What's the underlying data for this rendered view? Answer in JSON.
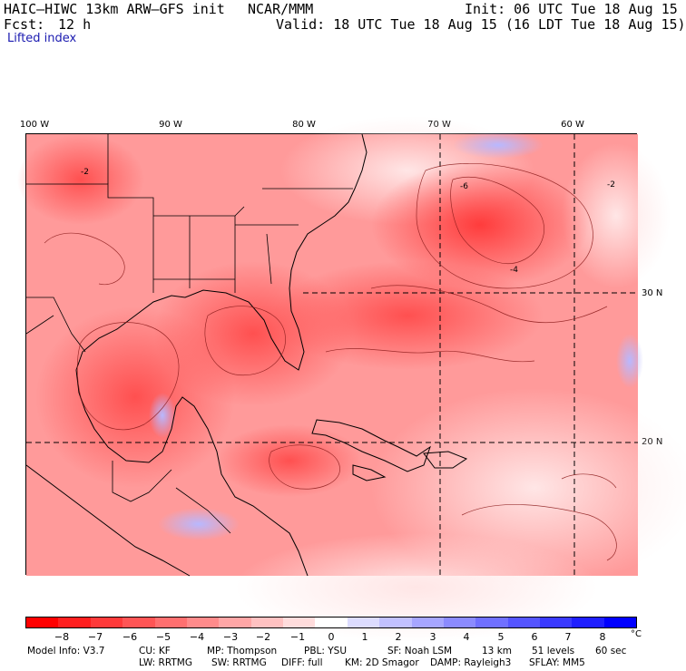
{
  "header": {
    "model": "HAIC–HIWC 13km ARW–GFS init",
    "center": "NCAR/MMM",
    "init": "Init: 06 UTC Tue 18 Aug 15",
    "fcst_label": "Fcst:",
    "fcst_value": "12 h",
    "valid": "Valid: 18 UTC Tue 18 Aug 15 (16 LDT Tue 18 Aug 15)",
    "field": "Lifted index"
  },
  "map": {
    "lon_labels": [
      "100 W",
      "90 W",
      "80 W",
      "70 W",
      "60 W"
    ],
    "lat_labels": [
      "30 N",
      "20 N"
    ],
    "contour_labels": [
      "-2",
      "-6",
      "-4",
      "-2"
    ]
  },
  "colorbar": {
    "ticks": [
      "−8",
      "−7",
      "−6",
      "−5",
      "−4",
      "−3",
      "−2",
      "−1",
      "0",
      "1",
      "2",
      "3",
      "4",
      "5",
      "6",
      "7",
      "8"
    ],
    "unit": "°C",
    "colors": [
      "#ff0000",
      "#ff1f1f",
      "#ff3a3a",
      "#ff5555",
      "#ff7070",
      "#ff8b8b",
      "#ffa6a6",
      "#ffc1c1",
      "#ffdcdc",
      "#ffffff",
      "#dcdcff",
      "#c1c1ff",
      "#a6a6ff",
      "#8b8bff",
      "#7070ff",
      "#5555ff",
      "#3a3aff",
      "#1f1fff",
      "#0000ff"
    ]
  },
  "footer": {
    "line1": [
      "Model Info: V3.7",
      "CU: KF",
      "MP: Thompson",
      "PBL: YSU",
      "SF: Noah LSM",
      "13 km",
      "51 levels",
      "60 sec"
    ],
    "line2": [
      "LW: RRTMG",
      "SW: RRTMG",
      "DIFF: full",
      "KM: 2D Smagor",
      "DAMP: Rayleigh3",
      "SFLAY: MM5"
    ]
  }
}
